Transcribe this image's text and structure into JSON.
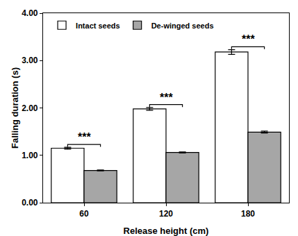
{
  "chart_data": {
    "type": "bar",
    "x_label": "Release height (cm)",
    "y_label": "Falling duration (s)",
    "categories": [
      "60",
      "120",
      "180"
    ],
    "series": [
      {
        "name": "Intact seeds",
        "color": "#ffffff",
        "values": [
          1.15,
          1.98,
          3.18
        ],
        "errors": [
          0.02,
          0.03,
          0.05
        ]
      },
      {
        "name": "De-winged seeds",
        "color": "#a6a6a6",
        "values": [
          0.68,
          1.06,
          1.49
        ],
        "errors": [
          0.01,
          0.01,
          0.02
        ]
      }
    ],
    "ylim": [
      0,
      4
    ],
    "yticks": [
      {
        "value": 0,
        "label": "0.00"
      },
      {
        "value": 1,
        "label": "1.00"
      },
      {
        "value": 2,
        "label": "2.00"
      },
      {
        "value": 3,
        "label": "3.00"
      },
      {
        "value": 4,
        "label": "4.00"
      }
    ],
    "grid": false,
    "legend": "upper left",
    "annotations": [
      {
        "category": "60",
        "text": "***"
      },
      {
        "category": "120",
        "text": "***"
      },
      {
        "category": "180",
        "text": "***"
      }
    ]
  }
}
